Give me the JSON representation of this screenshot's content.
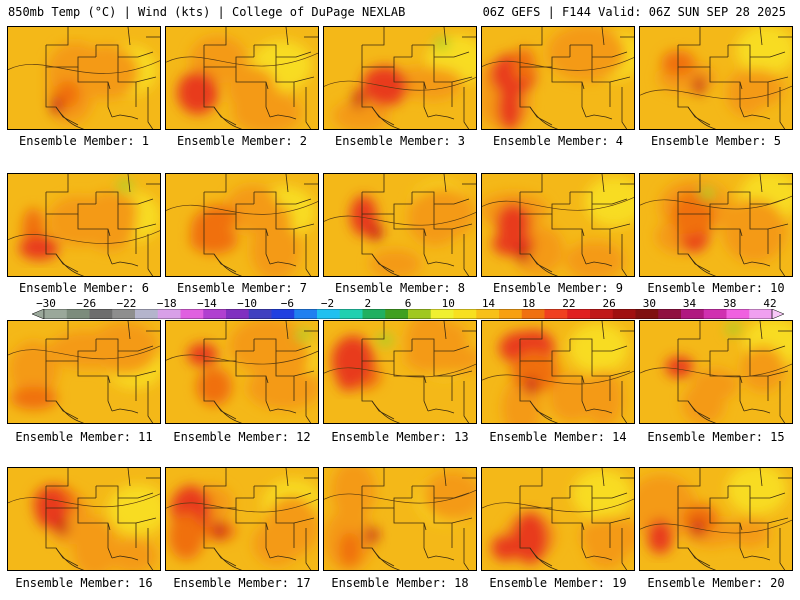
{
  "header": {
    "left": "850mb Temp (°C) | Wind (kts) | College of DuPage NEXLAB",
    "right": "06Z GEFS | F144 Valid: 06Z SUN SEP 28 2025"
  },
  "panels": [
    {
      "label": "Ensemble Member: 1"
    },
    {
      "label": "Ensemble Member: 2"
    },
    {
      "label": "Ensemble Member: 3"
    },
    {
      "label": "Ensemble Member: 4"
    },
    {
      "label": "Ensemble Member: 5"
    },
    {
      "label": "Ensemble Member: 6"
    },
    {
      "label": "Ensemble Member: 7"
    },
    {
      "label": "Ensemble Member: 8"
    },
    {
      "label": "Ensemble Member: 9"
    },
    {
      "label": "Ensemble Member: 10"
    },
    {
      "label": "Ensemble Member: 11"
    },
    {
      "label": "Ensemble Member: 12"
    },
    {
      "label": "Ensemble Member: 13"
    },
    {
      "label": "Ensemble Member: 14"
    },
    {
      "label": "Ensemble Member: 15"
    },
    {
      "label": "Ensemble Member: 16"
    },
    {
      "label": "Ensemble Member: 17"
    },
    {
      "label": "Ensemble Member: 18"
    },
    {
      "label": "Ensemble Member: 19"
    },
    {
      "label": "Ensemble Member: 20"
    }
  ],
  "colorbar": {
    "ticks": [
      "−30",
      "−26",
      "−22",
      "−18",
      "−14",
      "−10",
      "−6",
      "−2",
      "2",
      "6",
      "10",
      "14",
      "18",
      "22",
      "26",
      "30",
      "34",
      "38",
      "42"
    ],
    "colors": [
      "#9aa89a",
      "#7c8c7c",
      "#6e6e6e",
      "#8e8e8e",
      "#b4b4cc",
      "#d8a0e8",
      "#e060e0",
      "#b040d0",
      "#8030c0",
      "#4040c0",
      "#2040e0",
      "#2080f0",
      "#20c0f0",
      "#20d0b0",
      "#20b060",
      "#40a020",
      "#a0c820",
      "#f0f030",
      "#f8e020",
      "#f8c018",
      "#f8a010",
      "#f07010",
      "#f04020",
      "#e02020",
      "#c01818",
      "#a01010",
      "#801010",
      "#901040",
      "#b01880",
      "#d030b0",
      "#f060e0",
      "#f0a0f0"
    ],
    "low_arrow_color": "#9aa89a",
    "high_arrow_color": "#f8c8f8"
  },
  "palette": {
    "base": "#f4b818",
    "yellow": "#f8dc20",
    "orange": "#f49a14",
    "deep_orange": "#f07010",
    "red": "#e83a1a",
    "dark_red": "#c81818",
    "green": "#a8d028"
  }
}
